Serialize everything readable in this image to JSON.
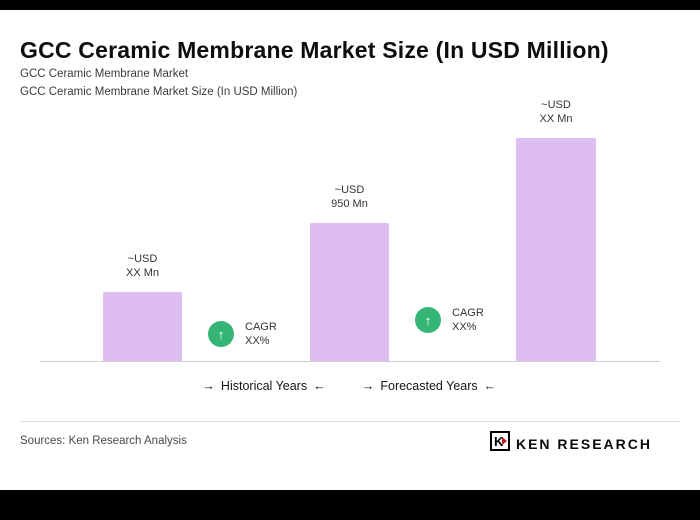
{
  "page": {
    "title": "GCC Ceramic Membrane Market Size (In USD Million)",
    "subtitle_line1": "GCC Ceramic Membrane Market",
    "subtitle_line2": "GCC Ceramic Membrane Market Size (In USD Million)",
    "footer": {
      "sources": "Sources: Ken Research Analysis",
      "logo_text": "KEN RESEARCH"
    }
  },
  "icons": {
    "up_arrow": "↑",
    "arrow_right": "→",
    "arrow_left": "←"
  },
  "chart_data": {
    "type": "bar",
    "title": "GCC Ceramic Membrane Market Size (In USD Million)",
    "categories": [
      "historical-year",
      "base-year",
      "forecast-year"
    ],
    "values": [
      475,
      950,
      1530
    ],
    "value_note": "Middle bar labeled ~USD 950 Mn; outer bars labeled ~USD XX Mn, values estimated from relative bar heights",
    "ylim": [
      0,
      1650
    ],
    "bar_color": "#ddbdf2",
    "badge_color": "#34b575",
    "grid": false,
    "legend": false,
    "bars": [
      {
        "label_line1": "~USD",
        "label_line2": "XX Mn"
      },
      {
        "label_line1": "~USD",
        "label_line2": "950 Mn"
      },
      {
        "label_line1": "~USD",
        "label_line2": "XX Mn"
      }
    ],
    "cagr_badges": [
      {
        "line1": "CAGR",
        "line2": "XX%"
      },
      {
        "line1": "CAGR",
        "line2": "XX%"
      }
    ],
    "axis_groups": [
      {
        "label": "Historical Years"
      },
      {
        "label": "Forecasted Years"
      }
    ]
  }
}
